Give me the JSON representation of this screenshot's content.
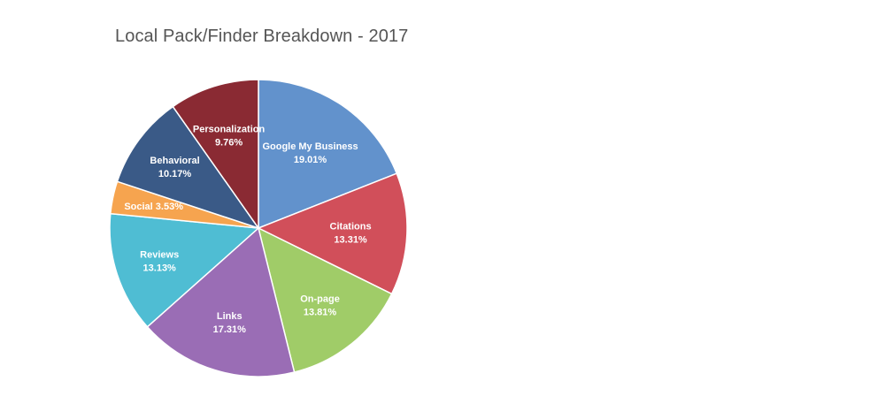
{
  "chart_data": {
    "type": "pie",
    "title": "Local Pack/Finder Breakdown - 2017",
    "slices": [
      {
        "name": "Google My Business",
        "value": 19.01,
        "label": "19.01%",
        "color": "#6292cc"
      },
      {
        "name": "Citations",
        "value": 13.31,
        "label": "13.31%",
        "color": "#d14f5a"
      },
      {
        "name": "On-page",
        "value": 13.81,
        "label": "13.81%",
        "color": "#a0cc68"
      },
      {
        "name": "Links",
        "value": 17.31,
        "label": "17.31%",
        "color": "#9a6db5"
      },
      {
        "name": "Reviews",
        "value": 13.13,
        "label": "13.13%",
        "color": "#4fbdd3"
      },
      {
        "name": "Social",
        "value": 3.53,
        "label": "3.53%",
        "color": "#f6a44f"
      },
      {
        "name": "Behavioral",
        "value": 10.17,
        "label": "10.17%",
        "color": "#3a5a87"
      },
      {
        "name": "Personalization",
        "value": 9.76,
        "label": "9.76%",
        "color": "#8a2a33"
      }
    ]
  }
}
